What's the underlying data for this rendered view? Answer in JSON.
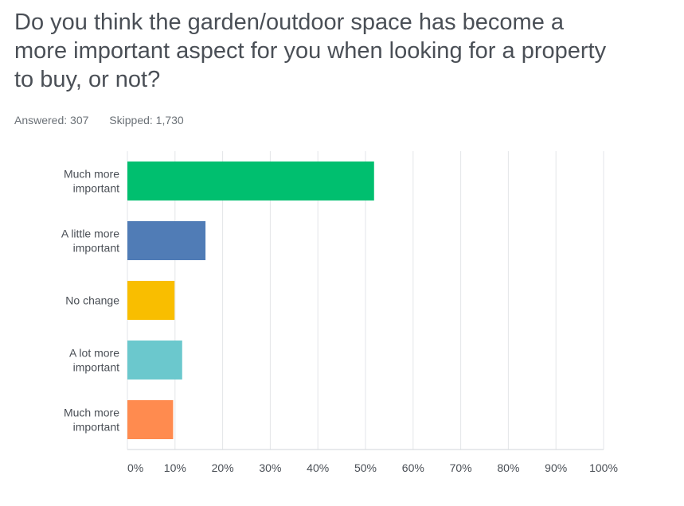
{
  "question": {
    "title": "Do you think  the  garden/outdoor  space  has become a\nmore important aspect for you when looking for a property\nto buy, or not?",
    "answered": "Answered: 307",
    "skipped": "Skipped: 1,730"
  },
  "chart_data": {
    "type": "bar",
    "orientation": "horizontal",
    "categories": [
      [
        "Much more",
        "important"
      ],
      [
        "A little more",
        "important"
      ],
      [
        "No change"
      ],
      [
        "A lot more",
        "important"
      ],
      [
        "Much more",
        "important"
      ]
    ],
    "values": [
      51.8,
      16.4,
      9.9,
      11.5,
      9.6
    ],
    "colors": [
      "#00bf6f",
      "#507cb6",
      "#f9be00",
      "#6bc8cd",
      "#ff8b4f"
    ],
    "xlim": [
      0,
      100
    ],
    "ticks": [
      0,
      10,
      20,
      30,
      40,
      50,
      60,
      70,
      80,
      90,
      100
    ],
    "tick_labels": [
      "0%",
      "10%",
      "20%",
      "30%",
      "40%",
      "50%",
      "60%",
      "70%",
      "80%",
      "90%",
      "100%"
    ],
    "grid": true,
    "legend": "none"
  }
}
